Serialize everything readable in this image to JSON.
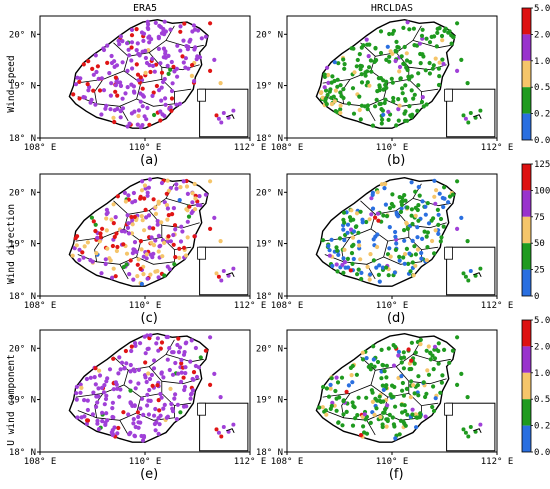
{
  "figure": {
    "column_titles": [
      "ERA5",
      "HRCLDAS"
    ],
    "row_titles": [
      "Wind speed",
      "Wind direction",
      "U wind component"
    ],
    "x_ticks": [
      "108° E",
      "110° E",
      "112° E"
    ],
    "y_ticks": [
      "18° N",
      "19° N",
      "20° N"
    ],
    "panel_labels": [
      "(a)",
      "(b)",
      "(c)",
      "(d)",
      "(e)",
      "(f)"
    ],
    "colorbars": [
      {
        "ticks": [
          "5.0",
          "2.0",
          "1.0",
          "0.5",
          "0.2",
          "0.0"
        ],
        "colors": [
          "#dd1111",
          "#9933cc",
          "#f5c56a",
          "#1f9a1f",
          "#2a6fe0"
        ]
      },
      {
        "ticks": [
          "125",
          "100",
          "75",
          "50",
          "25",
          "0"
        ],
        "colors": [
          "#dd1111",
          "#9933cc",
          "#f5c56a",
          "#1f9a1f",
          "#2a6fe0"
        ]
      },
      {
        "ticks": [
          "5.0",
          "2.0",
          "1.0",
          "0.5",
          "0.2",
          "0.0"
        ],
        "colors": [
          "#dd1111",
          "#9933cc",
          "#f5c56a",
          "#1f9a1f",
          "#2a6fe0"
        ]
      }
    ]
  },
  "chart_data": {
    "type": "scatter",
    "map": "Hainan Island station-level evaluation maps",
    "x_range": [
      108,
      112
    ],
    "y_range": [
      18,
      20.6
    ],
    "panels": [
      {
        "label": "(a)",
        "dataset": "ERA5",
        "variable": "Wind speed",
        "color_weights": {
          "red": 0.18,
          "purple": 0.78,
          "yellow": 0.02,
          "green": 0.02,
          "blue": 0.0
        }
      },
      {
        "label": "(b)",
        "dataset": "HRCLDAS",
        "variable": "Wind speed",
        "color_weights": {
          "red": 0.0,
          "purple": 0.06,
          "yellow": 0.12,
          "green": 0.8,
          "blue": 0.02
        }
      },
      {
        "label": "(c)",
        "dataset": "ERA5",
        "variable": "Wind direction",
        "color_weights": {
          "red": 0.2,
          "purple": 0.45,
          "yellow": 0.28,
          "green": 0.06,
          "blue": 0.01
        }
      },
      {
        "label": "(d)",
        "dataset": "HRCLDAS",
        "variable": "Wind direction",
        "color_weights": {
          "red": 0.01,
          "purple": 0.08,
          "yellow": 0.16,
          "green": 0.45,
          "blue": 0.3
        }
      },
      {
        "label": "(e)",
        "dataset": "ERA5",
        "variable": "U wind component",
        "color_weights": {
          "red": 0.12,
          "purple": 0.84,
          "yellow": 0.02,
          "green": 0.02,
          "blue": 0.0
        }
      },
      {
        "label": "(f)",
        "dataset": "HRCLDAS",
        "variable": "U wind component",
        "color_weights": {
          "red": 0.02,
          "purple": 0.06,
          "yellow": 0.14,
          "green": 0.72,
          "blue": 0.06
        }
      }
    ]
  }
}
